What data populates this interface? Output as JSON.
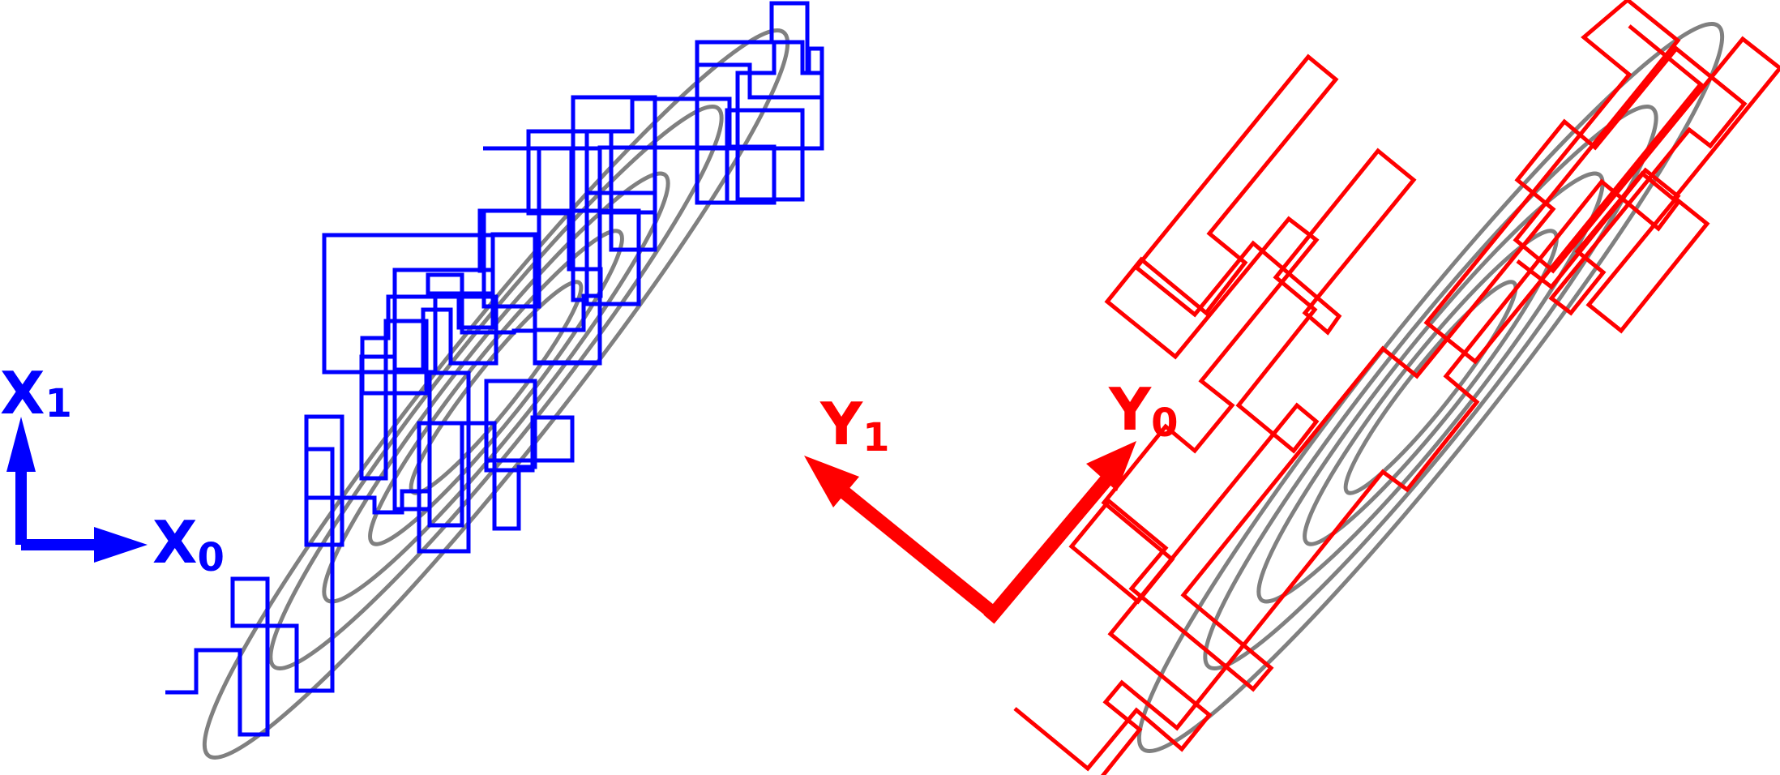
{
  "colors": {
    "contour": "#808080",
    "original_basis": "#0000ff",
    "rotated_basis": "#ff0000",
    "background": "#ffffff"
  },
  "left_panel": {
    "axis_x_label": "X",
    "axis_x_subscript": "0",
    "axis_y_label": "X",
    "axis_y_subscript": "1"
  },
  "center_axes": {
    "axis_0_label": "Y",
    "axis_0_subscript": "0",
    "axis_1_label": "Y",
    "axis_1_subscript": "1"
  }
}
